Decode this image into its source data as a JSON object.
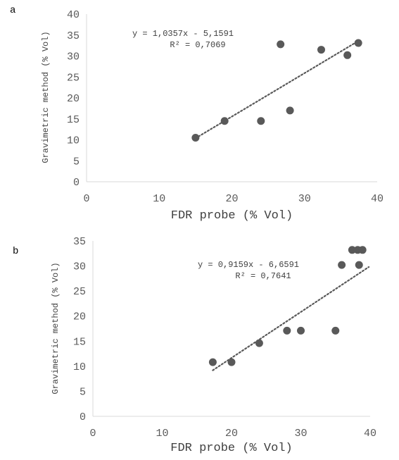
{
  "colors": {
    "marker": "#595959",
    "trendline": "#595959",
    "axis": "#d9d9d9",
    "text": "#404040"
  },
  "chart_data": [
    {
      "panel_label": "a",
      "type": "scatter",
      "xlabel": "FDR probe (% Vol)",
      "ylabel": "Gravimetric method (% Vol)",
      "xlim": [
        0,
        40
      ],
      "ylim": [
        0,
        40
      ],
      "x_ticks": [
        "0",
        "10",
        "20",
        "30",
        "40"
      ],
      "y_ticks": [
        "0",
        "5",
        "10",
        "15",
        "20",
        "25",
        "30",
        "35",
        "40"
      ],
      "grid": false,
      "points": [
        {
          "x": 15.0,
          "y": 10.5
        },
        {
          "x": 19.0,
          "y": 14.5
        },
        {
          "x": 24.0,
          "y": 14.5
        },
        {
          "x": 26.7,
          "y": 32.8
        },
        {
          "x": 28.0,
          "y": 17.0
        },
        {
          "x": 32.3,
          "y": 31.5
        },
        {
          "x": 35.9,
          "y": 30.2
        },
        {
          "x": 37.4,
          "y": 33.1
        }
      ],
      "trendline": {
        "slope": 1.0357,
        "intercept": -5.1591,
        "x_range": [
          15.0,
          37.4
        ],
        "style": "dotted"
      },
      "equation": "y = 1,0357x - 5,1591",
      "r_squared": "R² = 0,7069"
    },
    {
      "panel_label": "b",
      "type": "scatter",
      "xlabel": "FDR probe (% Vol)",
      "ylabel": "Gravimetric method (% Vol)",
      "xlim": [
        0,
        40
      ],
      "ylim": [
        0,
        35
      ],
      "x_ticks": [
        "0",
        "10",
        "20",
        "30",
        "40"
      ],
      "y_ticks": [
        "0",
        "5",
        "10",
        "15",
        "20",
        "25",
        "30",
        "35"
      ],
      "grid": false,
      "points": [
        {
          "x": 17.3,
          "y": 10.8
        },
        {
          "x": 20.0,
          "y": 10.8
        },
        {
          "x": 24.0,
          "y": 14.6
        },
        {
          "x": 28.0,
          "y": 17.1
        },
        {
          "x": 30.0,
          "y": 17.1
        },
        {
          "x": 35.0,
          "y": 17.1
        },
        {
          "x": 35.9,
          "y": 30.2
        },
        {
          "x": 37.4,
          "y": 33.2
        },
        {
          "x": 38.2,
          "y": 33.2
        },
        {
          "x": 38.9,
          "y": 33.2
        },
        {
          "x": 38.4,
          "y": 30.2
        }
      ],
      "trendline": {
        "slope": 0.9159,
        "intercept": -6.6591,
        "x_range": [
          17.3,
          39.8
        ],
        "style": "dotted"
      },
      "equation": "y = 0,9159x - 6,6591",
      "r_squared": "R² = 0,7641"
    }
  ]
}
